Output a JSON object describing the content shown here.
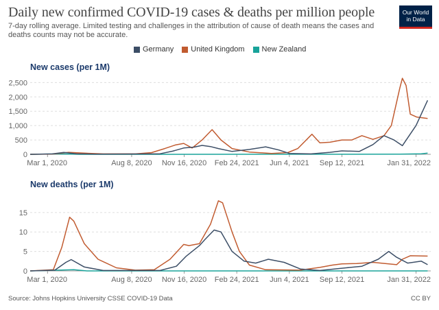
{
  "header": {
    "title": "Daily new confirmed COVID-19 cases & deaths per million people",
    "subtitle": "7-day rolling average. Limited testing and challenges in the attribution of cause of death means the cases and deaths counts may not be accurate.",
    "logo_line1": "Our World",
    "logo_line2": "in Data"
  },
  "legend": [
    {
      "name": "Germany",
      "color": "#3c4e66"
    },
    {
      "name": "United Kingdom",
      "color": "#c15b30"
    },
    {
      "name": "New Zealand",
      "color": "#18a39a"
    }
  ],
  "footer": {
    "source": "Source: Johns Hopkins University CSSE COVID-19 Data",
    "license": "CC BY"
  },
  "chart_data": [
    {
      "type": "line",
      "title": "New cases (per 1M)",
      "x_ticks": [
        "Mar 1, 2020",
        "Aug 8, 2020",
        "Nov 16, 2020",
        "Feb 24, 2021",
        "Jun 4, 2021",
        "Sep 12, 2021",
        "Jan 31, 2022"
      ],
      "y_ticks": [
        0,
        500,
        1000,
        1500,
        2000,
        2500
      ],
      "y_tick_labels": [
        "0",
        "500",
        "1,000",
        "1,500",
        "2,000",
        "2,500"
      ],
      "xlim": [
        "2020-01-28",
        "2022-02-28"
      ],
      "ylim": [
        0,
        2700
      ],
      "grid": "horizontal dashed",
      "series": [
        {
          "name": "Germany",
          "points": [
            [
              "2020-01-28",
              0
            ],
            [
              "2020-03-10",
              15
            ],
            [
              "2020-04-01",
              65
            ],
            [
              "2020-04-25",
              20
            ],
            [
              "2020-06-01",
              5
            ],
            [
              "2020-08-15",
              12
            ],
            [
              "2020-10-01",
              20
            ],
            [
              "2020-10-25",
              110
            ],
            [
              "2020-11-15",
              220
            ],
            [
              "2020-12-05",
              250
            ],
            [
              "2020-12-20",
              310
            ],
            [
              "2021-01-05",
              270
            ],
            [
              "2021-01-20",
              200
            ],
            [
              "2021-02-15",
              100
            ],
            [
              "2021-03-20",
              170
            ],
            [
              "2021-04-20",
              260
            ],
            [
              "2021-05-15",
              150
            ],
            [
              "2021-06-04",
              30
            ],
            [
              "2021-07-15",
              15
            ],
            [
              "2021-08-20",
              70
            ],
            [
              "2021-09-12",
              120
            ],
            [
              "2021-10-15",
              100
            ],
            [
              "2021-11-10",
              340
            ],
            [
              "2021-12-01",
              650
            ],
            [
              "2021-12-20",
              500
            ],
            [
              "2022-01-05",
              300
            ],
            [
              "2022-01-31",
              1000
            ],
            [
              "2022-02-22",
              1880
            ]
          ]
        },
        {
          "name": "United Kingdom",
          "points": [
            [
              "2020-01-28",
              0
            ],
            [
              "2020-03-10",
              10
            ],
            [
              "2020-04-10",
              70
            ],
            [
              "2020-05-10",
              40
            ],
            [
              "2020-06-15",
              15
            ],
            [
              "2020-08-15",
              15
            ],
            [
              "2020-09-15",
              60
            ],
            [
              "2020-10-10",
              200
            ],
            [
              "2020-10-31",
              330
            ],
            [
              "2020-11-15",
              380
            ],
            [
              "2020-12-01",
              220
            ],
            [
              "2020-12-20",
              500
            ],
            [
              "2021-01-08",
              860
            ],
            [
              "2021-01-25",
              500
            ],
            [
              "2021-02-15",
              200
            ],
            [
              "2021-03-20",
              80
            ],
            [
              "2021-05-01",
              30
            ],
            [
              "2021-06-01",
              60
            ],
            [
              "2021-06-20",
              200
            ],
            [
              "2021-07-17",
              700
            ],
            [
              "2021-08-01",
              400
            ],
            [
              "2021-08-20",
              420
            ],
            [
              "2021-09-12",
              500
            ],
            [
              "2021-10-01",
              500
            ],
            [
              "2021-10-20",
              650
            ],
            [
              "2021-11-10",
              520
            ],
            [
              "2021-12-01",
              650
            ],
            [
              "2021-12-15",
              1000
            ],
            [
              "2021-12-31",
              2300
            ],
            [
              "2022-01-05",
              2650
            ],
            [
              "2022-01-12",
              2400
            ],
            [
              "2022-01-20",
              1400
            ],
            [
              "2022-02-01",
              1300
            ],
            [
              "2022-02-22",
              1250
            ]
          ]
        },
        {
          "name": "New Zealand",
          "points": [
            [
              "2020-01-28",
              0
            ],
            [
              "2020-03-28",
              15
            ],
            [
              "2020-05-01",
              0
            ],
            [
              "2021-12-31",
              5
            ],
            [
              "2022-02-10",
              20
            ],
            [
              "2022-02-22",
              40
            ]
          ]
        }
      ]
    },
    {
      "type": "line",
      "title": "New deaths (per 1M)",
      "x_ticks": [
        "Mar 1, 2020",
        "Aug 8, 2020",
        "Nov 16, 2020",
        "Feb 24, 2021",
        "Jun 4, 2021",
        "Sep 12, 2021",
        "Jan 31, 2022"
      ],
      "y_ticks": [
        0,
        5,
        10,
        15
      ],
      "y_tick_labels": [
        "0",
        "5",
        "10",
        "15"
      ],
      "xlim": [
        "2020-01-28",
        "2022-02-28"
      ],
      "ylim": [
        0,
        18.5
      ],
      "grid": "horizontal dashed",
      "series": [
        {
          "name": "Germany",
          "points": [
            [
              "2020-01-28",
              0
            ],
            [
              "2020-03-15",
              0.2
            ],
            [
              "2020-04-05",
              2.2
            ],
            [
              "2020-04-15",
              2.9
            ],
            [
              "2020-05-10",
              1.0
            ],
            [
              "2020-06-15",
              0.1
            ],
            [
              "2020-10-01",
              0.1
            ],
            [
              "2020-11-01",
              1.2
            ],
            [
              "2020-11-20",
              3.8
            ],
            [
              "2020-12-15",
              6.5
            ],
            [
              "2020-12-25",
              8.0
            ],
            [
              "2021-01-12",
              10.5
            ],
            [
              "2021-01-25",
              10.0
            ],
            [
              "2021-02-15",
              5.0
            ],
            [
              "2021-03-10",
              2.5
            ],
            [
              "2021-04-01",
              2.0
            ],
            [
              "2021-04-25",
              3.0
            ],
            [
              "2021-05-25",
              2.2
            ],
            [
              "2021-06-25",
              0.5
            ],
            [
              "2021-08-01",
              0.1
            ],
            [
              "2021-09-20",
              0.8
            ],
            [
              "2021-10-20",
              1.2
            ],
            [
              "2021-11-20",
              3.0
            ],
            [
              "2021-12-10",
              5.0
            ],
            [
              "2021-12-25",
              3.5
            ],
            [
              "2022-01-15",
              2.0
            ],
            [
              "2022-02-10",
              2.5
            ],
            [
              "2022-02-22",
              1.6
            ]
          ]
        },
        {
          "name": "United Kingdom",
          "points": [
            [
              "2020-01-28",
              0
            ],
            [
              "2020-03-12",
              0.3
            ],
            [
              "2020-03-28",
              6.0
            ],
            [
              "2020-04-12",
              13.8
            ],
            [
              "2020-04-20",
              12.8
            ],
            [
              "2020-05-10",
              7.0
            ],
            [
              "2020-06-05",
              3.0
            ],
            [
              "2020-07-10",
              0.8
            ],
            [
              "2020-08-15",
              0.2
            ],
            [
              "2020-09-20",
              0.3
            ],
            [
              "2020-10-20",
              3.0
            ],
            [
              "2020-11-15",
              6.8
            ],
            [
              "2020-11-25",
              6.5
            ],
            [
              "2020-12-15",
              7.0
            ],
            [
              "2021-01-05",
              12.0
            ],
            [
              "2021-01-20",
              18.0
            ],
            [
              "2021-01-28",
              17.5
            ],
            [
              "2021-02-15",
              10.0
            ],
            [
              "2021-03-01",
              5.0
            ],
            [
              "2021-03-20",
              1.5
            ],
            [
              "2021-04-20",
              0.3
            ],
            [
              "2021-06-25",
              0.2
            ],
            [
              "2021-08-01",
              0.9
            ],
            [
              "2021-08-25",
              1.5
            ],
            [
              "2021-09-12",
              1.8
            ],
            [
              "2021-10-10",
              1.9
            ],
            [
              "2021-11-10",
              2.2
            ],
            [
              "2021-12-10",
              1.8
            ],
            [
              "2021-12-25",
              1.6
            ],
            [
              "2022-01-05",
              3.0
            ],
            [
              "2022-01-20",
              3.9
            ],
            [
              "2022-02-22",
              3.8
            ]
          ]
        },
        {
          "name": "New Zealand",
          "points": [
            [
              "2020-01-28",
              0
            ],
            [
              "2020-04-20",
              0.3
            ],
            [
              "2020-05-15",
              0
            ],
            [
              "2022-02-22",
              0
            ]
          ]
        }
      ]
    }
  ]
}
